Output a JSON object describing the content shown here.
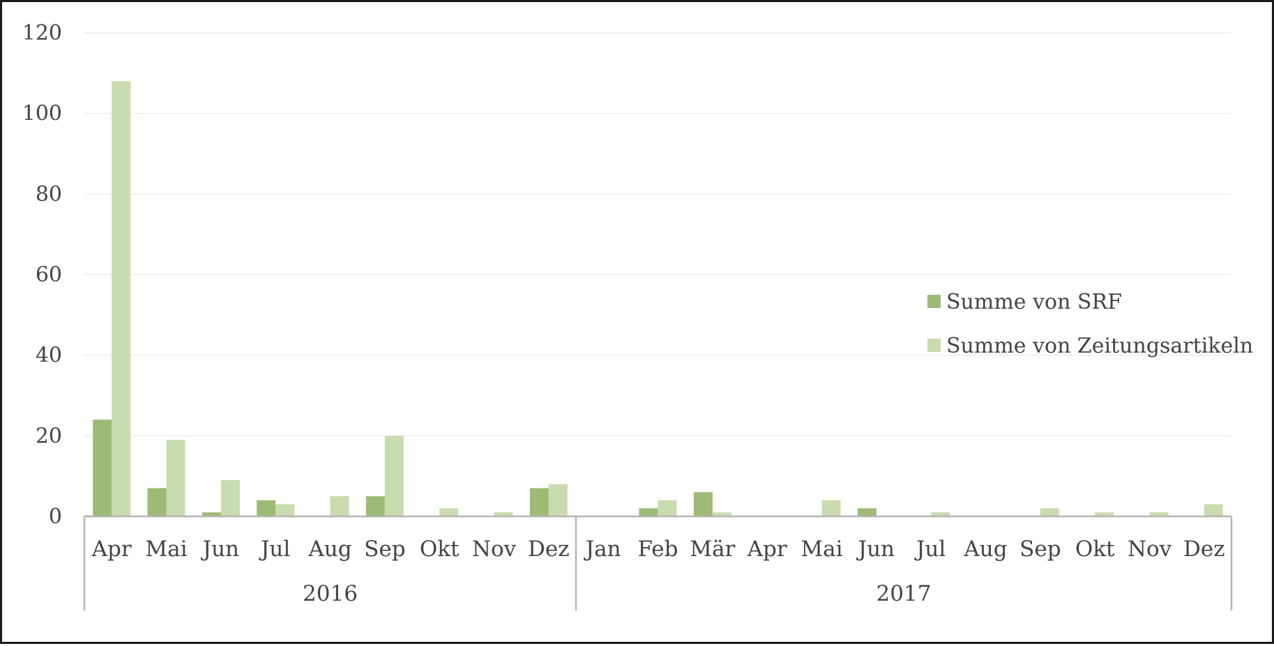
{
  "chart_data": {
    "type": "bar",
    "title": "",
    "xlabel": "",
    "ylabel": "",
    "ylim": [
      0,
      120
    ],
    "yticks": [
      0,
      20,
      40,
      60,
      80,
      100,
      120
    ],
    "ytick_labels": [
      "0",
      "20",
      "40",
      "60",
      "80",
      "100",
      "120"
    ],
    "grid": true,
    "legend_position": "right",
    "groups": [
      {
        "label": "2016",
        "count": 9
      },
      {
        "label": "2017",
        "count": 12
      }
    ],
    "categories": [
      "Apr",
      "Mai",
      "Jun",
      "Jul",
      "Aug",
      "Sep",
      "Okt",
      "Nov",
      "Dez",
      "Jan",
      "Feb",
      "Mär",
      "Apr",
      "Mai",
      "Jun",
      "Jul",
      "Aug",
      "Sep",
      "Okt",
      "Nov",
      "Dez"
    ],
    "series": [
      {
        "name": "Summe von SRF",
        "color": "#9dbb74",
        "values": [
          24,
          7,
          1,
          4,
          0,
          5,
          0,
          0,
          7,
          0,
          2,
          6,
          0,
          0,
          2,
          0,
          0,
          0,
          0,
          0,
          0
        ]
      },
      {
        "name": "Summe von Zeitungsartikeln",
        "color": "#c9dcaf",
        "values": [
          108,
          19,
          9,
          3,
          5,
          20,
          2,
          1,
          8,
          0,
          4,
          1,
          0,
          4,
          0,
          1,
          0,
          2,
          1,
          1,
          3
        ]
      }
    ],
    "colors": {
      "grid": "#eeeeee",
      "axis": "#b5b5b5",
      "text": "#444444"
    }
  }
}
